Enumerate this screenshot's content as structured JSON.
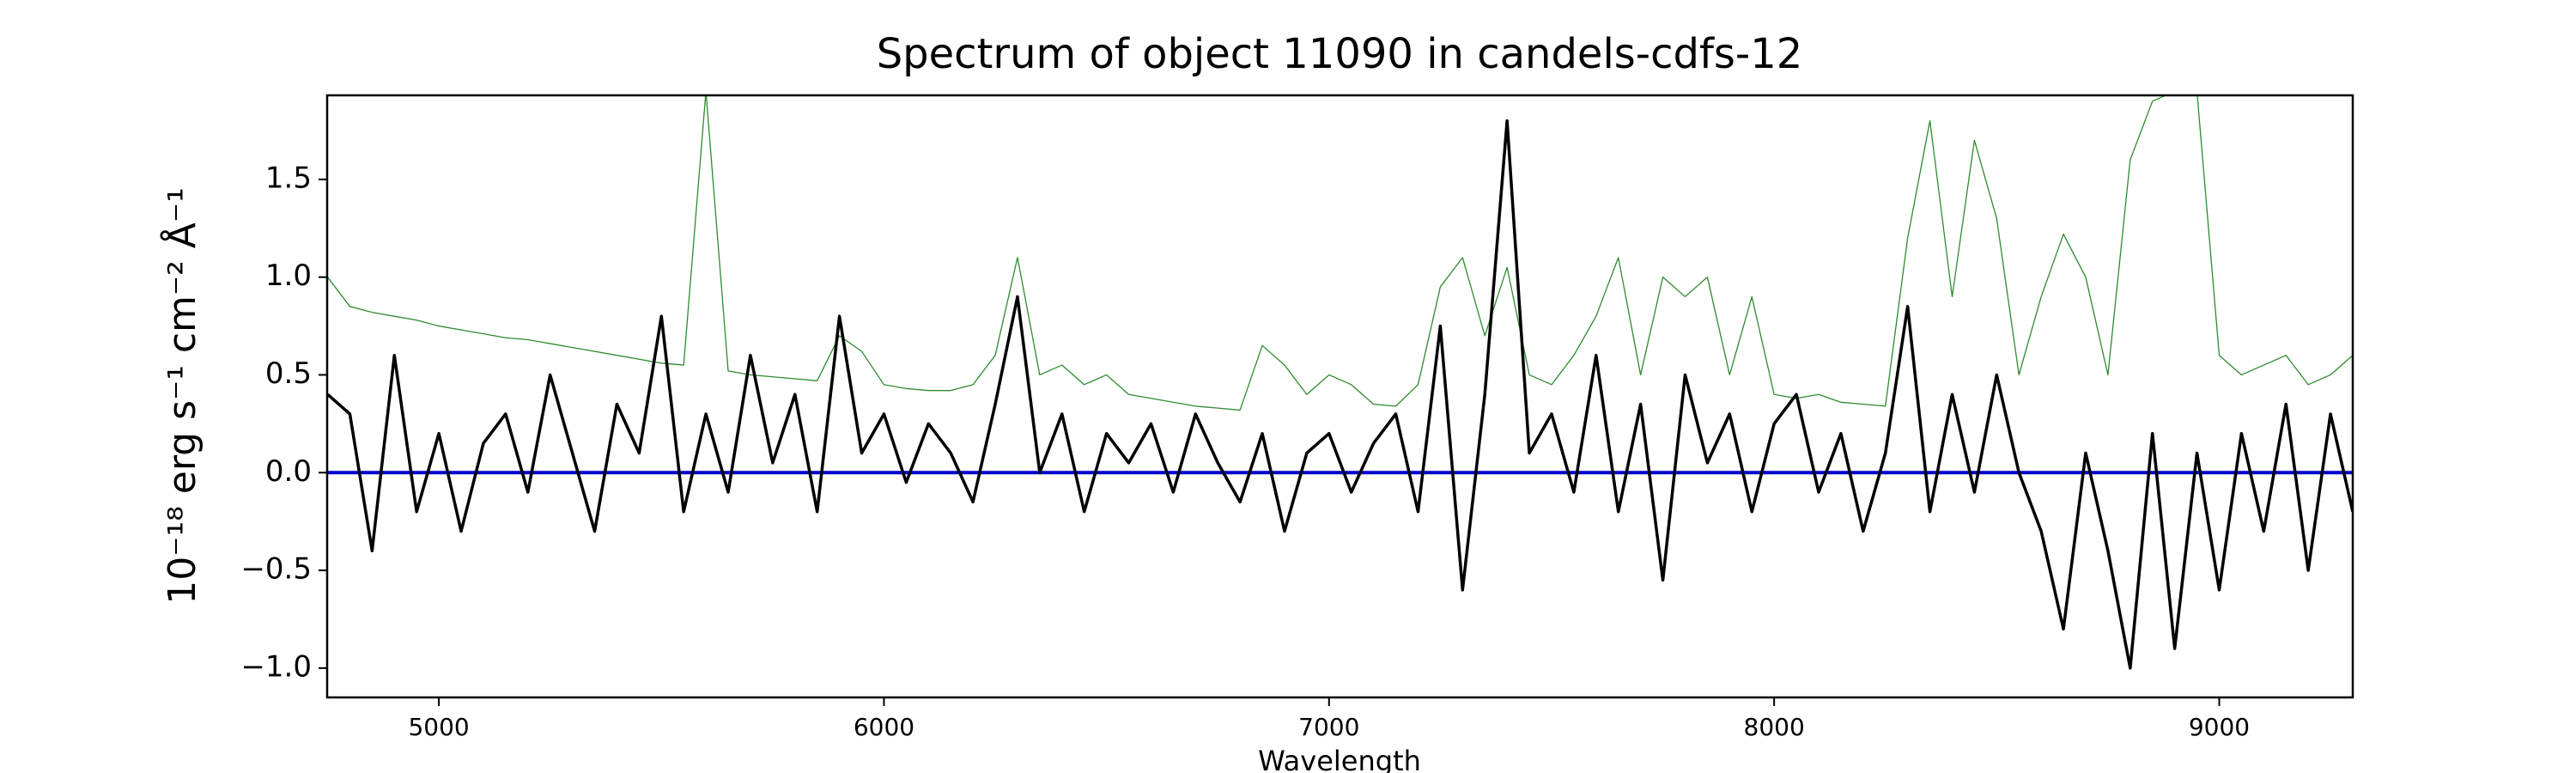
{
  "chart_data": {
    "type": "line",
    "title": "Spectrum of object 11090 in candels-cdfs-12",
    "xlabel": "Wavelength",
    "ylabel": "10⁻¹⁸ erg s⁻¹ cm⁻² Å⁻¹",
    "x": [
      4750,
      4800,
      4850,
      4900,
      4950,
      5000,
      5050,
      5100,
      5150,
      5200,
      5250,
      5300,
      5350,
      5400,
      5450,
      5500,
      5550,
      5600,
      5650,
      5700,
      5750,
      5800,
      5850,
      5900,
      5950,
      6000,
      6050,
      6100,
      6150,
      6200,
      6250,
      6300,
      6350,
      6400,
      6450,
      6500,
      6550,
      6600,
      6650,
      6700,
      6750,
      6800,
      6850,
      6900,
      6950,
      7000,
      7050,
      7100,
      7150,
      7200,
      7250,
      7300,
      7350,
      7400,
      7450,
      7500,
      7550,
      7600,
      7650,
      7700,
      7750,
      7800,
      7850,
      7900,
      7950,
      8000,
      8050,
      8100,
      8150,
      8200,
      8250,
      8300,
      8350,
      8400,
      8450,
      8500,
      8550,
      8600,
      8650,
      8700,
      8750,
      8800,
      8850,
      8900,
      8950,
      9000,
      9050,
      9100,
      9150,
      9200,
      9250,
      9300
    ],
    "series": [
      {
        "color": "#2e8b2e",
        "width": 1.3,
        "values": [
          1.0,
          0.85,
          0.82,
          0.8,
          0.78,
          0.75,
          0.73,
          0.71,
          0.69,
          0.68,
          0.66,
          0.64,
          0.62,
          0.6,
          0.58,
          0.56,
          0.55,
          1.95,
          0.52,
          0.5,
          0.49,
          0.48,
          0.47,
          0.7,
          0.62,
          0.45,
          0.43,
          0.42,
          0.42,
          0.45,
          0.6,
          1.1,
          0.5,
          0.55,
          0.45,
          0.5,
          0.4,
          0.38,
          0.36,
          0.34,
          0.33,
          0.32,
          0.65,
          0.55,
          0.4,
          0.5,
          0.45,
          0.35,
          0.34,
          0.45,
          0.95,
          1.1,
          0.7,
          1.05,
          0.5,
          0.45,
          0.6,
          0.8,
          1.1,
          0.5,
          1.0,
          0.9,
          1.0,
          0.5,
          0.9,
          0.4,
          0.38,
          0.4,
          0.36,
          0.35,
          0.34,
          1.2,
          1.8,
          0.9,
          1.7,
          1.3,
          0.5,
          0.9,
          1.22,
          1.0,
          0.5,
          1.6,
          1.9,
          1.95,
          1.95,
          0.6,
          0.5,
          0.55,
          0.6,
          0.45,
          0.5,
          0.6
        ]
      },
      {
        "color": "#0000cc",
        "width": 4,
        "values": [
          0,
          0,
          0,
          0,
          0,
          0,
          0,
          0,
          0,
          0,
          0,
          0,
          0,
          0,
          0,
          0,
          0,
          0,
          0,
          0,
          0,
          0,
          0,
          0,
          0,
          0,
          0,
          0,
          0,
          0,
          0,
          0,
          0,
          0,
          0,
          0,
          0,
          0,
          0,
          0,
          0,
          0,
          0,
          0,
          0,
          0,
          0,
          0,
          0,
          0,
          0,
          0,
          0,
          0,
          0,
          0,
          0,
          0,
          0,
          0,
          0,
          0,
          0,
          0,
          0,
          0,
          0,
          0,
          0,
          0,
          0,
          0,
          0,
          0,
          0,
          0,
          0,
          0,
          0,
          0,
          0,
          0,
          0,
          0,
          0,
          0,
          0,
          0,
          0,
          0,
          0,
          0
        ]
      },
      {
        "color": "#000000",
        "width": 3.5,
        "values": [
          0.4,
          0.3,
          -0.4,
          0.6,
          -0.2,
          0.2,
          -0.3,
          0.15,
          0.3,
          -0.1,
          0.5,
          0.1,
          -0.3,
          0.35,
          0.1,
          0.8,
          -0.2,
          0.3,
          -0.1,
          0.6,
          0.05,
          0.4,
          -0.2,
          0.8,
          0.1,
          0.3,
          -0.05,
          0.25,
          0.1,
          -0.15,
          0.35,
          0.9,
          0.0,
          0.3,
          -0.2,
          0.2,
          0.05,
          0.25,
          -0.1,
          0.3,
          0.05,
          -0.15,
          0.2,
          -0.3,
          0.1,
          0.2,
          -0.1,
          0.15,
          0.3,
          -0.2,
          0.75,
          -0.6,
          0.4,
          1.8,
          0.1,
          0.3,
          -0.1,
          0.6,
          -0.2,
          0.35,
          -0.55,
          0.5,
          0.05,
          0.3,
          -0.2,
          0.25,
          0.4,
          -0.1,
          0.2,
          -0.3,
          0.1,
          0.85,
          -0.2,
          0.4,
          -0.1,
          0.5,
          0.0,
          -0.3,
          -0.8,
          0.1,
          -0.4,
          -1.0,
          0.2,
          -0.9,
          0.1,
          -0.6,
          0.2,
          -0.3,
          0.35,
          -0.5,
          0.3,
          -0.2
        ]
      }
    ],
    "xlim": [
      4749,
      9300
    ],
    "ylim": [
      -1.15,
      1.93
    ],
    "xticks": [
      5000,
      6000,
      7000,
      8000,
      9000
    ],
    "yticks": [
      {
        "value": -1,
        "label": "−1.0"
      },
      {
        "value": -0.5,
        "label": "−0.5"
      },
      {
        "value": 0,
        "label": "0.0"
      },
      0.5,
      {
        "value": 1,
        "label": "1.0"
      },
      1.5
    ],
    "grid": false
  }
}
